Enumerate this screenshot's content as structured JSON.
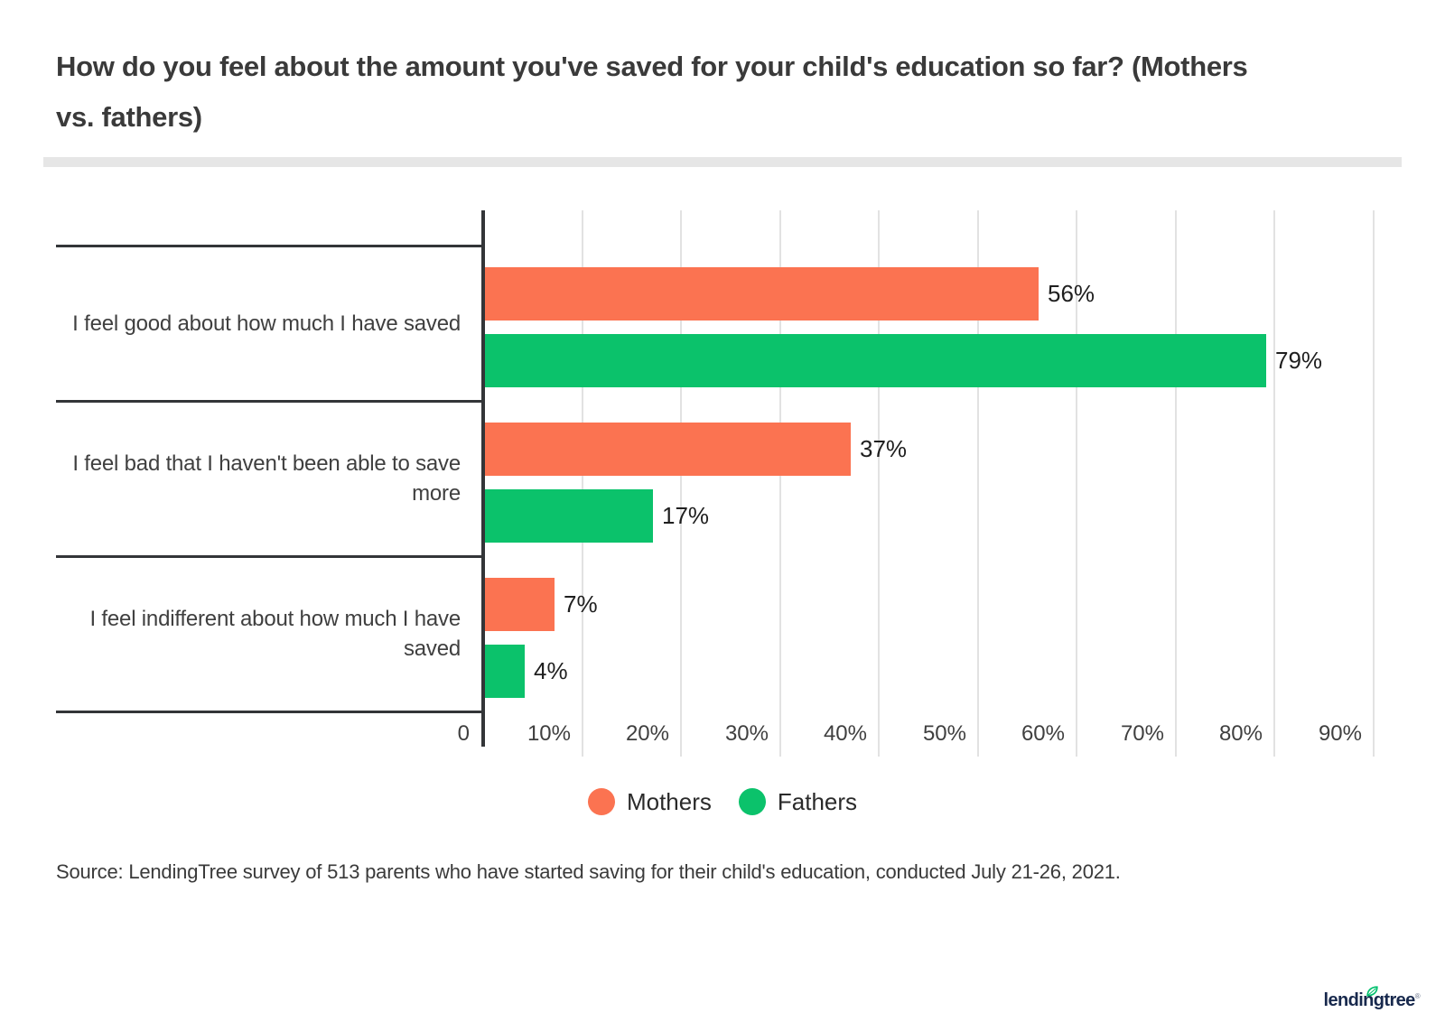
{
  "title": {
    "line1": "How do you feel about the amount you've saved for your child's education so far? (Mothers",
    "line2": "vs. fathers)"
  },
  "chart_data": {
    "type": "bar",
    "orientation": "horizontal",
    "title": "How do you feel about the amount you've saved for your child's education so far? (Mothers vs. fathers)",
    "categories": [
      [
        "I feel good about how much I have saved"
      ],
      [
        "I feel bad that I haven't been able to save",
        "more"
      ],
      [
        "I feel indifferent about how much I have",
        "saved"
      ]
    ],
    "series": [
      {
        "name": "Mothers",
        "color": "#FB7351",
        "values": [
          56,
          37,
          7
        ]
      },
      {
        "name": "Fathers",
        "color": "#0BC26B",
        "values": [
          79,
          17,
          4
        ]
      }
    ],
    "value_label_suffix": "%",
    "x_ticks": [
      "0",
      "10%",
      "20%",
      "30%",
      "40%",
      "50%",
      "60%",
      "70%",
      "80%",
      "90%"
    ],
    "xlim": [
      0,
      91
    ],
    "grid": "vertical",
    "legend_position": "bottom"
  },
  "source": {
    "text": "Source: LendingTree survey of 513 parents who have started saving for their child's education, conducted July 21-26, 2021."
  },
  "logo": {
    "text": "lendingtree",
    "mark": "®"
  },
  "colors": {
    "mothers": "#FB7351",
    "fathers": "#0BC26B",
    "axis": "#333538",
    "gridline": "#E2E2E2",
    "divider": "#E6E6E6",
    "title_text": "#3A3A3A",
    "label_text": "#3F3F3F",
    "value_text": "#1F1F1F",
    "logo_navy": "#18294D",
    "leaf_green": "#00C06D"
  }
}
